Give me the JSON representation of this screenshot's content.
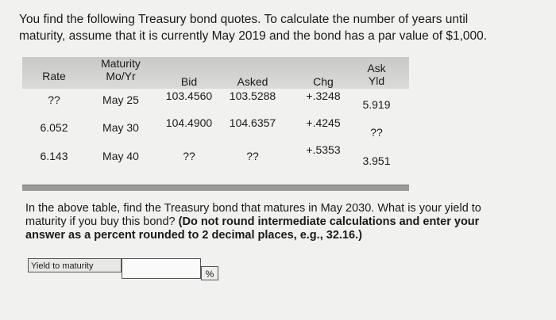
{
  "intro": {
    "lines": [
      "You find the following Treasury bond quotes. To calculate the number of years until",
      "maturity, assume that it is currently May 2019 and the bond has a par value of $1,000."
    ]
  },
  "table": {
    "headers": [
      "Rate",
      "Maturity\nMo/Yr",
      "Bid",
      "Asked",
      "Chg",
      "Ask\nYld"
    ],
    "rows": [
      [
        "??",
        "May 25",
        "103.4560",
        "103.5288",
        "+.3248",
        "5.919"
      ],
      [
        "6.052",
        "May 30",
        "104.4900",
        "104.6357",
        "+.4245",
        "??"
      ],
      [
        "6.143",
        "May 40",
        "??",
        "??",
        "+.5353",
        "3.951"
      ]
    ]
  },
  "question": {
    "text": "In the above table, find the Treasury bond that matures in May 2030. What is your yield to maturity if you buy this bond?",
    "instructions": "(Do not round intermediate calculations and enter your answer as a percent rounded to 2 decimal places, e.g., 32.16.)"
  },
  "answer": {
    "label": "Yield to maturity",
    "unit": "%"
  }
}
